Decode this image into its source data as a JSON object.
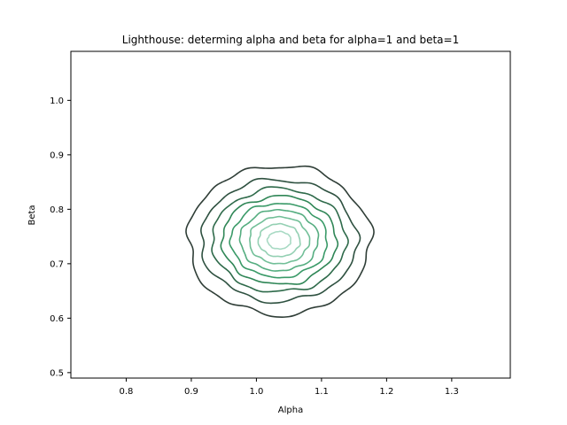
{
  "chart_data": {
    "type": "contour",
    "title": "Lighthouse: determing alpha and beta for alpha=1 and beta=1",
    "xlabel": "Alpha",
    "ylabel": "Beta",
    "xlim": [
      0.715,
      1.39
    ],
    "ylim": [
      0.49,
      1.09
    ],
    "xticks": [
      0.8,
      0.9,
      1.0,
      1.1,
      1.2,
      1.3
    ],
    "xtick_labels": [
      "0.8",
      "0.9",
      "1.0",
      "1.1",
      "1.2",
      "1.3"
    ],
    "yticks": [
      0.5,
      0.6,
      0.7,
      0.8,
      0.9,
      1.0
    ],
    "ytick_labels": [
      "0.5",
      "0.6",
      "0.7",
      "0.8",
      "0.9",
      "1.0"
    ],
    "grid": false,
    "center": {
      "x": 1.035,
      "y": 0.743
    },
    "levels": [
      {
        "rx": 0.14,
        "ry": 0.137,
        "color": "#2f3e37"
      },
      {
        "rx": 0.12,
        "ry": 0.112,
        "color": "#2e5140"
      },
      {
        "rx": 0.103,
        "ry": 0.095,
        "color": "#2e6a4a"
      },
      {
        "rx": 0.088,
        "ry": 0.081,
        "color": "#2f8656"
      },
      {
        "rx": 0.074,
        "ry": 0.068,
        "color": "#3a9a68"
      },
      {
        "rx": 0.06,
        "ry": 0.056,
        "color": "#55ad80"
      },
      {
        "rx": 0.046,
        "ry": 0.043,
        "color": "#72bf98"
      },
      {
        "rx": 0.032,
        "ry": 0.03,
        "color": "#94d0b3"
      },
      {
        "rx": 0.018,
        "ry": 0.016,
        "color": "#a9dac4"
      }
    ]
  }
}
